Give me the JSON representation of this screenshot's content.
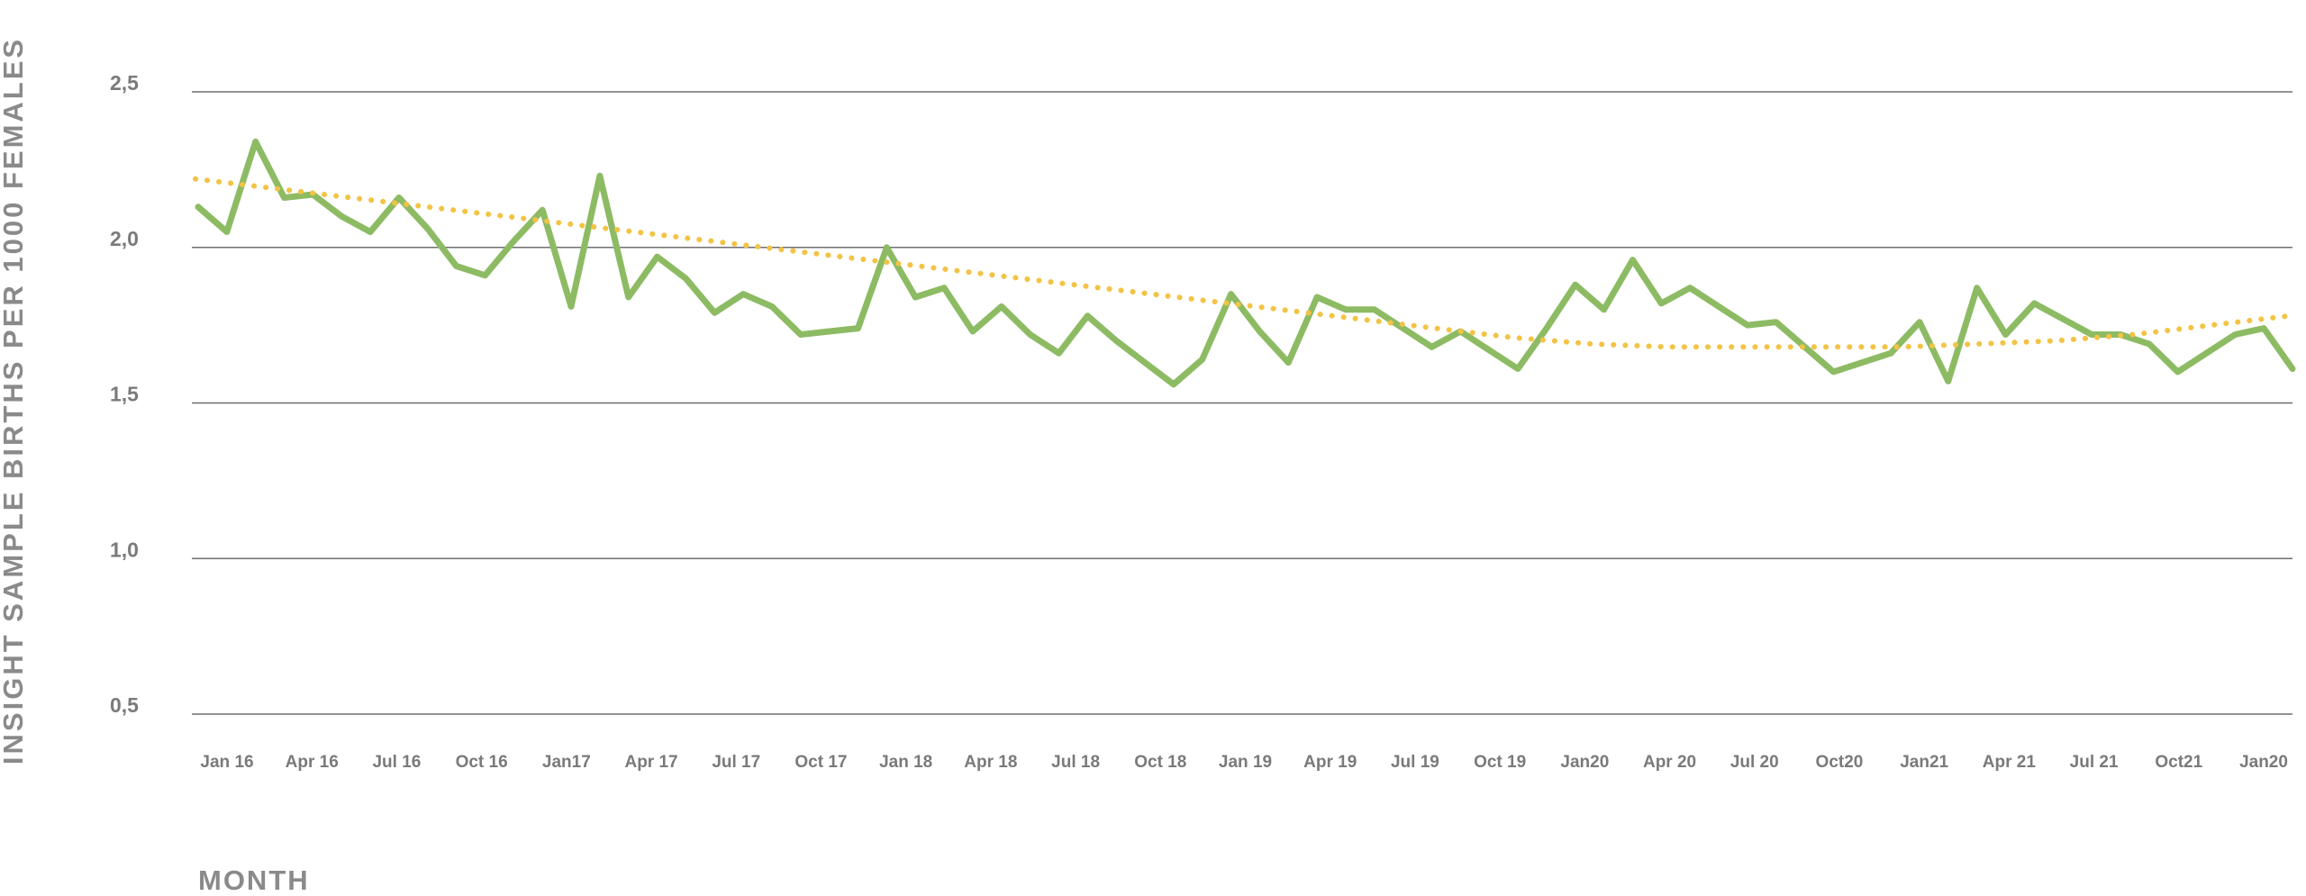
{
  "chart_data": {
    "type": "line",
    "xlabel": "MONTH",
    "ylabel": "INSIGHT SAMPLE BIRTHS PER 1000 FEMALES",
    "ylim": [
      0.5,
      2.5
    ],
    "yticks": [
      "0,5",
      "1,0",
      "1,5",
      "2,0",
      "2,5"
    ],
    "ytick_values": [
      0.5,
      1.0,
      1.5,
      2.0,
      2.5
    ],
    "xtick_labels": [
      "Jan 16",
      "Apr 16",
      "Jul 16",
      "Oct 16",
      "Jan17",
      "Apr 17",
      "Jul 17",
      "Oct 17",
      "Jan 18",
      "Apr 18",
      "Jul 18",
      "Oct 18",
      "Jan 19",
      "Apr 19",
      "Jul 19",
      "Oct 19",
      "Jan20",
      "Apr 20",
      "Jul 20",
      "Oct20",
      "Jan21",
      "Apr 21",
      "Jul 21",
      "Oct21",
      "Jan20"
    ],
    "grid": true,
    "legend": "none",
    "series": [
      {
        "color": "#8dbb63",
        "style": "solid",
        "values": [
          2.13,
          2.05,
          2.34,
          2.16,
          2.17,
          2.1,
          2.05,
          2.16,
          2.06,
          1.94,
          1.91,
          2.02,
          2.12,
          1.81,
          2.23,
          1.84,
          1.97,
          1.9,
          1.79,
          1.85,
          1.81,
          1.72,
          1.73,
          1.74,
          2.0,
          1.84,
          1.87,
          1.73,
          1.81,
          1.72,
          1.66,
          1.78,
          1.7,
          1.63,
          1.56,
          1.64,
          1.85,
          1.73,
          1.63,
          1.84,
          1.8,
          1.8,
          1.74,
          1.68,
          1.73,
          1.67,
          1.61,
          1.74,
          1.88,
          1.8,
          1.96,
          1.82,
          1.87,
          1.81,
          1.75,
          1.76,
          1.68,
          1.6,
          1.63,
          1.66,
          1.76,
          1.57,
          1.87,
          1.72,
          1.82,
          1.77,
          1.72,
          1.72,
          1.69,
          1.6,
          1.66,
          1.72,
          1.74,
          1.61
        ]
      },
      {
        "color": "#f3c345",
        "style": "dotted",
        "trendline": true,
        "values": [
          2.22,
          2.19,
          2.16,
          2.13,
          2.1,
          2.07,
          2.04,
          2.01,
          1.98,
          1.95,
          1.92,
          1.89,
          1.86,
          1.83,
          1.8,
          1.77,
          1.74,
          1.71,
          1.69,
          1.68,
          1.68,
          1.68,
          1.68,
          1.69,
          1.7,
          1.72,
          1.75,
          1.78
        ]
      }
    ]
  }
}
